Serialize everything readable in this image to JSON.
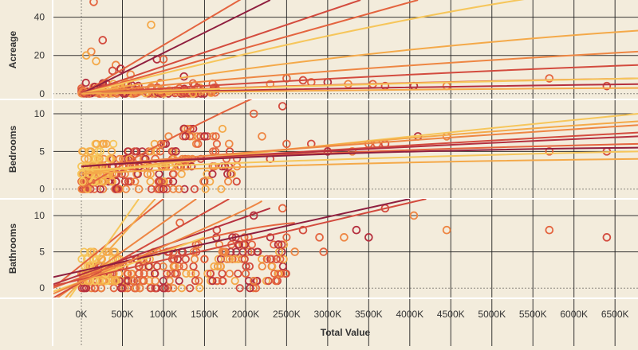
{
  "chart_data": {
    "type": "scatter",
    "xlabel": "Total Value",
    "x_unit_suffix": "K",
    "x_ticks": [
      0,
      500,
      1000,
      1500,
      2000,
      2500,
      3000,
      3500,
      4000,
      4500,
      5000,
      5500,
      6000,
      6500
    ],
    "x_tick_labels": [
      "0K",
      "500K",
      "1000K",
      "1500K",
      "2000K",
      "2500K",
      "3000K",
      "3500K",
      "4000K",
      "4500K",
      "5000K",
      "5500K",
      "6000K",
      "6500K"
    ],
    "xlim": [
      -350,
      6780
    ],
    "grid": true,
    "legend": "none",
    "colors": [
      "#f6c65b",
      "#f4a949",
      "#ee8643",
      "#e4643f",
      "#d34b3e",
      "#b5303f",
      "#8f1f3f"
    ],
    "background": "#f3ecdc",
    "panels": [
      {
        "ylabel": "Acreage",
        "ylim": [
          -3,
          49
        ],
        "yticks": [
          0,
          20,
          40
        ],
        "outliers": [
          [
            150,
            48
          ],
          [
            260,
            28
          ],
          [
            850,
            36
          ],
          [
            120,
            22
          ],
          [
            60,
            20
          ],
          [
            180,
            17
          ],
          [
            920,
            18
          ],
          [
            420,
            15
          ],
          [
            1000,
            18
          ],
          [
            380,
            12
          ],
          [
            480,
            13
          ],
          [
            600,
            10
          ],
          [
            2500,
            8
          ],
          [
            2700,
            7
          ],
          [
            3000,
            6
          ],
          [
            3250,
            5
          ],
          [
            3550,
            5
          ],
          [
            3700,
            4
          ],
          [
            4050,
            4
          ],
          [
            4450,
            4
          ],
          [
            5700,
            8
          ],
          [
            6400,
            4
          ],
          [
            1250,
            9
          ],
          [
            2300,
            5
          ],
          [
            2800,
            6
          ]
        ],
        "cluster": {
          "x": [
            0,
            1650
          ],
          "y": [
            0,
            6
          ],
          "n": 160
        },
        "trends": [
          {
            "color": 3,
            "pts": [
              [
                0,
                0
              ],
              [
                2400,
                61
              ]
            ]
          },
          {
            "color": 6,
            "pts": [
              [
                0,
                0
              ],
              [
                2300,
                49
              ]
            ]
          },
          {
            "color": 4,
            "pts": [
              [
                0,
                0
              ],
              [
                3400,
                49
              ]
            ]
          },
          {
            "color": 3,
            "pts": [
              [
                0,
                0
              ],
              [
                4100,
                49
              ]
            ]
          },
          {
            "color": 0,
            "pts": [
              [
                0,
                0
              ],
              [
                3500,
                38
              ],
              [
                5800,
                52
              ]
            ]
          },
          {
            "color": 1,
            "pts": [
              [
                0,
                0
              ],
              [
                3000,
                22
              ],
              [
                6780,
                33
              ]
            ]
          },
          {
            "color": 2,
            "pts": [
              [
                0,
                0
              ],
              [
                2500,
                12
              ],
              [
                6780,
                22
              ]
            ]
          },
          {
            "color": 4,
            "pts": [
              [
                0,
                0
              ],
              [
                3500,
                10
              ],
              [
                6780,
                15
              ]
            ]
          },
          {
            "color": 3,
            "pts": [
              [
                0,
                0
              ],
              [
                2500,
                5
              ],
              [
                6780,
                8
              ]
            ]
          },
          {
            "color": 0,
            "pts": [
              [
                0,
                0
              ],
              [
                3000,
                5
              ],
              [
                6780,
                8
              ]
            ]
          },
          {
            "color": 5,
            "pts": [
              [
                0,
                0
              ],
              [
                3000,
                3
              ],
              [
                6780,
                5
              ]
            ]
          },
          {
            "color": 1,
            "pts": [
              [
                0,
                0
              ],
              [
                3000,
                2
              ],
              [
                6780,
                3
              ]
            ]
          }
        ]
      },
      {
        "ylabel": "Bedrooms",
        "ylim": [
          -1.3,
          11.9
        ],
        "yticks": [
          0,
          5,
          10
        ],
        "outliers": [
          [
            2100,
            10
          ],
          [
            2450,
            11
          ],
          [
            1250,
            8
          ],
          [
            2200,
            7
          ],
          [
            2500,
            6
          ],
          [
            2800,
            6
          ],
          [
            3000,
            5
          ],
          [
            3300,
            5
          ],
          [
            3600,
            6
          ],
          [
            3700,
            6
          ],
          [
            4100,
            7
          ],
          [
            4450,
            7
          ],
          [
            5700,
            5
          ],
          [
            6400,
            5
          ],
          [
            1500,
            7
          ],
          [
            1800,
            6
          ],
          [
            900,
            4
          ],
          [
            950,
            0
          ],
          [
            1000,
            0
          ],
          [
            700,
            0
          ],
          [
            3500,
            6
          ],
          [
            2300,
            4
          ],
          [
            1150,
            5
          ]
        ],
        "cluster": {
          "x": [
            0,
            1900
          ],
          "y": [
            0,
            8
          ],
          "n": 230
        },
        "yellow_cluster": {
          "x": [
            0,
            400
          ],
          "y": [
            1,
            6
          ],
          "n": 60
        },
        "trends": [
          {
            "color": 3,
            "pts": [
              [
                0,
                0
              ],
              [
                1200,
                8
              ],
              [
                2500,
                14
              ]
            ]
          },
          {
            "color": 0,
            "pts": [
              [
                0,
                2
              ],
              [
                2500,
                5.5
              ],
              [
                6780,
                10
              ]
            ]
          },
          {
            "color": 1,
            "pts": [
              [
                0,
                2
              ],
              [
                2500,
                6
              ],
              [
                6780,
                9
              ]
            ]
          },
          {
            "color": 2,
            "pts": [
              [
                0,
                3
              ],
              [
                2500,
                5.5
              ],
              [
                6780,
                8.5
              ]
            ]
          },
          {
            "color": 4,
            "pts": [
              [
                0,
                3
              ],
              [
                2500,
                5
              ],
              [
                6780,
                7.5
              ]
            ]
          },
          {
            "color": 5,
            "pts": [
              [
                0,
                3
              ],
              [
                2500,
                5
              ],
              [
                6780,
                7
              ]
            ]
          },
          {
            "color": 3,
            "pts": [
              [
                0,
                3
              ],
              [
                2500,
                5
              ],
              [
                6780,
                6
              ]
            ]
          },
          {
            "color": 6,
            "pts": [
              [
                0,
                3
              ],
              [
                2500,
                5
              ],
              [
                6780,
                5.5
              ]
            ]
          },
          {
            "color": 0,
            "pts": [
              [
                0,
                2.5
              ],
              [
                2500,
                4
              ],
              [
                6780,
                5
              ]
            ]
          },
          {
            "color": 1,
            "pts": [
              [
                0,
                2
              ],
              [
                2500,
                3.5
              ],
              [
                6780,
                4
              ]
            ]
          }
        ]
      },
      {
        "ylabel": "Bathrooms",
        "ylim": [
          -1.4,
          12.3
        ],
        "yticks": [
          0,
          5,
          10
        ],
        "outliers": [
          [
            2450,
            11
          ],
          [
            3700,
            11
          ],
          [
            2100,
            10
          ],
          [
            4050,
            10
          ],
          [
            1200,
            9
          ],
          [
            1650,
            8
          ],
          [
            3350,
            8
          ],
          [
            4450,
            8
          ],
          [
            5700,
            8
          ],
          [
            6400,
            7
          ],
          [
            3500,
            7
          ],
          [
            3200,
            7
          ],
          [
            2900,
            7
          ],
          [
            2700,
            8
          ],
          [
            2400,
            6
          ],
          [
            2600,
            5
          ],
          [
            2950,
            5
          ],
          [
            900,
            0
          ],
          [
            1000,
            0
          ],
          [
            900,
            1
          ],
          [
            650,
            0
          ],
          [
            700,
            3
          ]
        ],
        "cluster": {
          "x": [
            0,
            2500
          ],
          "y": [
            0,
            7
          ],
          "n": 260
        },
        "yellow_cluster": {
          "x": [
            0,
            450
          ],
          "y": [
            1,
            5
          ],
          "n": 60
        },
        "trends": [
          {
            "color": 3,
            "pts": [
              [
                -350,
                0
              ],
              [
                1000,
                12.3
              ]
            ]
          },
          {
            "color": 0,
            "pts": [
              [
                -150,
                -1.4
              ],
              [
                700,
                12.3
              ]
            ]
          },
          {
            "color": 1,
            "pts": [
              [
                -200,
                -1.4
              ],
              [
                900,
                12.3
              ]
            ]
          },
          {
            "color": 2,
            "pts": [
              [
                -300,
                -1.4
              ],
              [
                1400,
                12.3
              ]
            ]
          },
          {
            "color": 4,
            "pts": [
              [
                -350,
                -1.4
              ],
              [
                1800,
                12.3
              ]
            ]
          },
          {
            "color": 5,
            "pts": [
              [
                -350,
                0.5
              ],
              [
                2300,
                11
              ]
            ]
          },
          {
            "color": 3,
            "pts": [
              [
                -350,
                0
              ],
              [
                1500,
                8
              ],
              [
                2600,
                9
              ]
            ]
          },
          {
            "color": 0,
            "pts": [
              [
                -350,
                -0.5
              ],
              [
                1500,
                7
              ]
            ]
          },
          {
            "color": 4,
            "pts": [
              [
                -350,
                0.3
              ],
              [
                4200,
                12.3
              ]
            ]
          },
          {
            "color": 6,
            "pts": [
              [
                -350,
                1.5
              ],
              [
                4000,
                12.3
              ]
            ]
          },
          {
            "color": 2,
            "pts": [
              [
                -350,
                -0.8
              ],
              [
                2000,
                10.5
              ],
              [
                2200,
                12
              ]
            ]
          }
        ]
      }
    ]
  }
}
